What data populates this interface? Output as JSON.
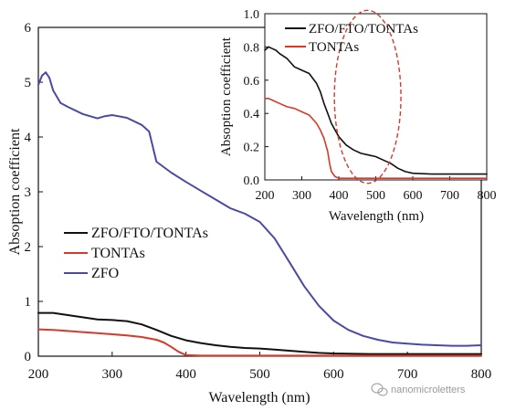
{
  "colors": {
    "ZFO/FTO/TONTAs": "#111111",
    "TONTAs": "#d63a2a",
    "ZFO": "#4b4aa3",
    "annotation": "#d63a2a"
  },
  "watermark": "nanomicroletters",
  "chart_data": [
    {
      "id": "main",
      "type": "line",
      "xlabel": "Wavelength (nm)",
      "ylabel": "Absoption coefficient",
      "xlim": [
        200,
        800
      ],
      "ylim": [
        0,
        6
      ],
      "x_ticks": [
        "200",
        "300",
        "400",
        "500",
        "600",
        "700",
        "800"
      ],
      "y_ticks": [
        "0",
        "1",
        "2",
        "3",
        "4",
        "5",
        "6"
      ],
      "legend_position": "middle-left",
      "series": [
        {
          "name": "ZFO/FTO/TONTAs",
          "x": [
            200,
            220,
            240,
            260,
            280,
            300,
            320,
            340,
            360,
            380,
            400,
            420,
            440,
            460,
            480,
            500,
            520,
            540,
            560,
            580,
            600,
            650,
            700,
            750,
            800
          ],
          "y": [
            0.79,
            0.79,
            0.75,
            0.71,
            0.67,
            0.66,
            0.64,
            0.58,
            0.48,
            0.37,
            0.29,
            0.24,
            0.2,
            0.17,
            0.15,
            0.14,
            0.12,
            0.1,
            0.08,
            0.06,
            0.05,
            0.04,
            0.04,
            0.04,
            0.04
          ]
        },
        {
          "name": "TONTAs",
          "x": [
            200,
            220,
            240,
            260,
            280,
            300,
            320,
            340,
            360,
            370,
            380,
            390,
            400,
            420,
            450,
            500,
            600,
            700,
            800
          ],
          "y": [
            0.49,
            0.48,
            0.46,
            0.44,
            0.42,
            0.4,
            0.38,
            0.35,
            0.3,
            0.25,
            0.17,
            0.08,
            0.02,
            0.01,
            0.01,
            0.01,
            0.01,
            0.01,
            0.01
          ]
        },
        {
          "name": "ZFO",
          "x": [
            200,
            205,
            210,
            215,
            220,
            230,
            240,
            260,
            280,
            290,
            300,
            320,
            340,
            350,
            360,
            380,
            400,
            420,
            440,
            460,
            480,
            500,
            520,
            540,
            560,
            580,
            600,
            620,
            640,
            660,
            680,
            700,
            720,
            740,
            760,
            780,
            800
          ],
          "y": [
            4.95,
            5.12,
            5.18,
            5.08,
            4.85,
            4.62,
            4.55,
            4.42,
            4.34,
            4.38,
            4.4,
            4.35,
            4.22,
            4.1,
            3.55,
            3.35,
            3.18,
            3.02,
            2.86,
            2.7,
            2.6,
            2.45,
            2.15,
            1.72,
            1.28,
            0.92,
            0.65,
            0.48,
            0.37,
            0.3,
            0.25,
            0.23,
            0.21,
            0.2,
            0.19,
            0.19,
            0.2
          ]
        }
      ]
    },
    {
      "id": "inset",
      "type": "line",
      "xlabel": "Wavelength (nm)",
      "ylabel": "Absoption coefficient",
      "xlim": [
        200,
        800
      ],
      "ylim": [
        0,
        1.0
      ],
      "x_ticks": [
        "200",
        "300",
        "400",
        "500",
        "600",
        "700",
        "800"
      ],
      "y_ticks": [
        "0.0",
        "0.2",
        "0.4",
        "0.6",
        "0.8",
        "1.0"
      ],
      "legend_position": "top-left",
      "annotation": {
        "type": "dashed-ellipse",
        "center_x": 478,
        "center_y": 0.5,
        "radius_x": 90,
        "radius_y": 0.52
      },
      "series": [
        {
          "name": "ZFO/FTO/TONTAs",
          "x": [
            200,
            210,
            220,
            230,
            240,
            260,
            280,
            300,
            320,
            340,
            350,
            360,
            370,
            380,
            400,
            420,
            440,
            460,
            480,
            500,
            520,
            540,
            560,
            580,
            600,
            650,
            700,
            750,
            800
          ],
          "y": [
            0.78,
            0.8,
            0.79,
            0.78,
            0.76,
            0.73,
            0.68,
            0.66,
            0.64,
            0.58,
            0.53,
            0.46,
            0.4,
            0.34,
            0.26,
            0.21,
            0.18,
            0.16,
            0.15,
            0.14,
            0.12,
            0.1,
            0.07,
            0.05,
            0.04,
            0.035,
            0.035,
            0.035,
            0.035
          ]
        },
        {
          "name": "TONTAs",
          "x": [
            200,
            210,
            220,
            240,
            260,
            280,
            300,
            320,
            340,
            350,
            360,
            370,
            375,
            380,
            390,
            400,
            420,
            450,
            500,
            600,
            700,
            800
          ],
          "y": [
            0.49,
            0.49,
            0.48,
            0.46,
            0.44,
            0.43,
            0.41,
            0.39,
            0.34,
            0.3,
            0.25,
            0.17,
            0.1,
            0.05,
            0.02,
            0.01,
            0.01,
            0.01,
            0.01,
            0.01,
            0.01,
            0.01
          ]
        }
      ]
    }
  ]
}
